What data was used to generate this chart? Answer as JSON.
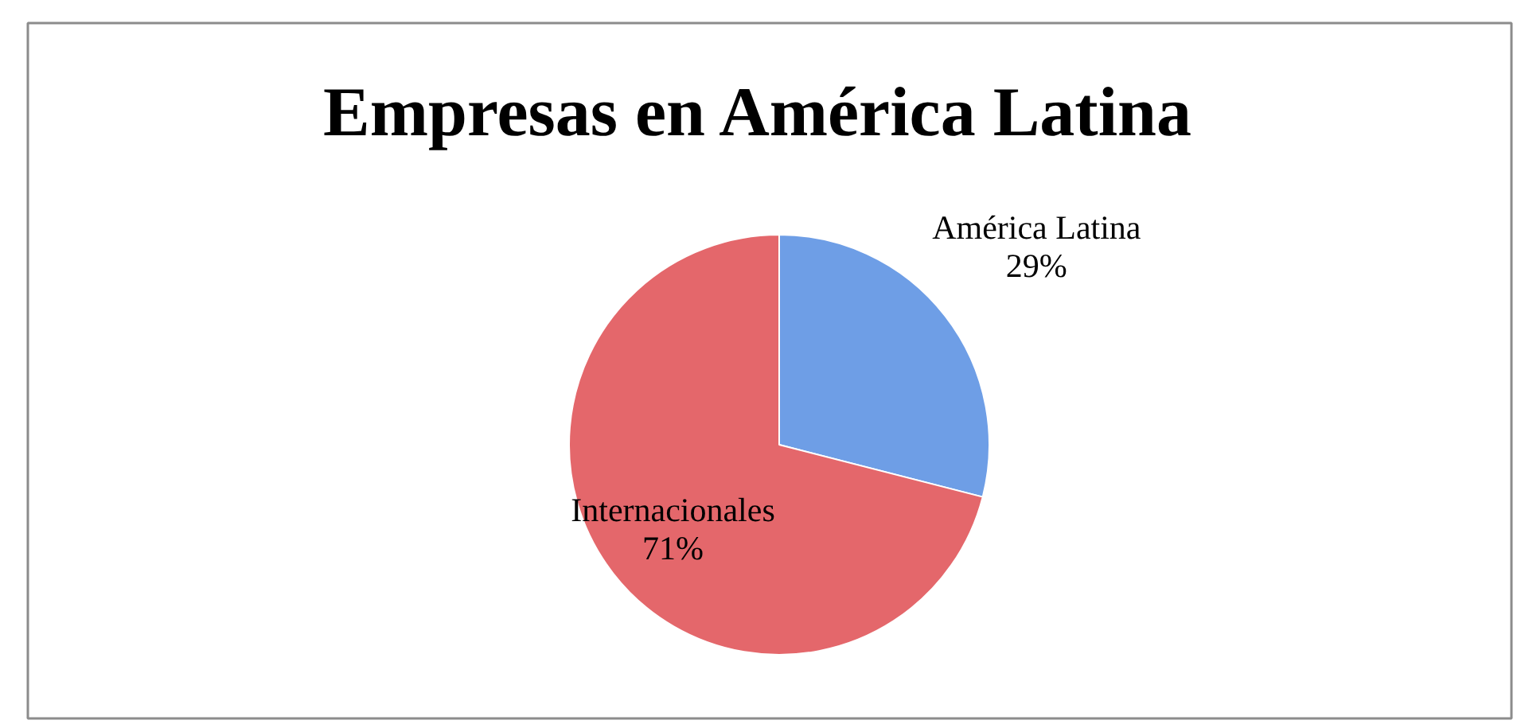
{
  "chart_data": {
    "type": "pie",
    "title": "Empresas en América Latina",
    "categories": [
      "América Latina",
      "Internacionales"
    ],
    "values": [
      29,
      71
    ],
    "colors": [
      "#6e9ee6",
      "#e4676b"
    ],
    "value_labels": [
      "29%",
      "71%"
    ]
  }
}
